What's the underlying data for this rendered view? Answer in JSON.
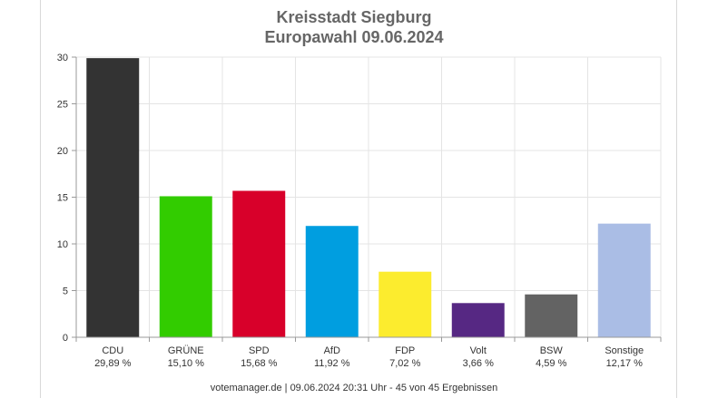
{
  "title_line1": "Kreisstadt Siegburg",
  "title_line2": "Europawahl 09.06.2024",
  "footer": "votemanager.de | 09.06.2024 20:31 Uhr - 45 von 45 Ergebnissen",
  "chart_data": {
    "type": "bar",
    "title": "Kreisstadt Siegburg Europawahl 09.06.2024",
    "xlabel": "",
    "ylabel": "",
    "ylim": [
      0,
      30
    ],
    "yticks": [
      "0",
      "5",
      "10",
      "15",
      "20",
      "25",
      "30"
    ],
    "grid": true,
    "categories": [
      "CDU",
      "GRÜNE",
      "SPD",
      "AfD",
      "FDP",
      "Volt",
      "BSW",
      "Sonstige"
    ],
    "values": [
      29.89,
      15.1,
      15.68,
      11.92,
      7.02,
      3.66,
      4.59,
      12.17
    ],
    "value_labels": [
      "29,89 %",
      "15,10 %",
      "15,68 %",
      "11,92 %",
      "7,02 %",
      "3,66 %",
      "4,59 %",
      "12,17 %"
    ],
    "colors": [
      "#333333",
      "#32cc00",
      "#d8002a",
      "#009ee0",
      "#fcec2e",
      "#562883",
      "#636363",
      "#aabde5"
    ]
  }
}
